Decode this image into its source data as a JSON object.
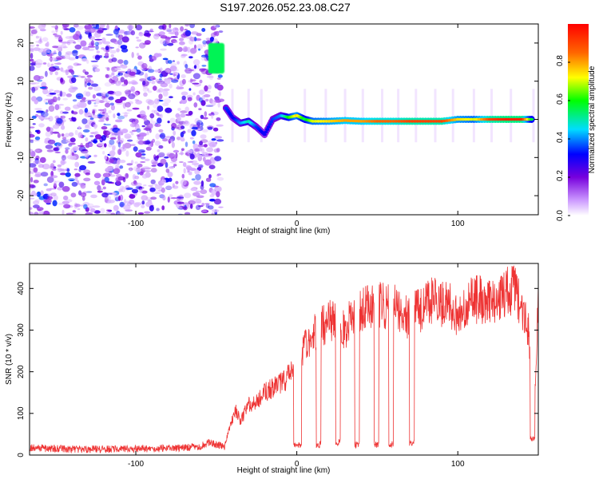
{
  "figure_title": "S197.2026.052.23.08.C27",
  "chart_data": [
    {
      "type": "heatmap",
      "name": "spectrogram",
      "xlabel": "Height of straight line (km)",
      "ylabel": "Frequency (Hz)",
      "xlim": [
        -166,
        150
      ],
      "ylim": [
        -25,
        25
      ],
      "xticks": [
        -100,
        0,
        100
      ],
      "yticks": [
        20,
        10,
        0,
        -10,
        -20
      ],
      "noise_region_x": [
        -166,
        -47
      ],
      "burst": {
        "x": [
          -55,
          -45
        ],
        "y": [
          12,
          20
        ],
        "value": 0.55
      },
      "track": {
        "x": [
          -44,
          -40,
          -35,
          -30,
          -25,
          -20,
          -15,
          -10,
          -5,
          0,
          5,
          10,
          20,
          30,
          40,
          50,
          60,
          70,
          80,
          90,
          100,
          110,
          120,
          130,
          140,
          147
        ],
        "y": [
          3,
          0.5,
          -1,
          -0.5,
          -2,
          -4,
          0,
          1,
          0.5,
          1,
          0,
          -0.5,
          -0.5,
          -0.3,
          -0.5,
          -0.5,
          -0.5,
          -0.5,
          -0.5,
          -0.5,
          0,
          0,
          0,
          0,
          0,
          0
        ],
        "amplitude": [
          0.35,
          0.3,
          0.4,
          0.5,
          0.35,
          0.3,
          0.35,
          0.4,
          0.6,
          0.75,
          0.55,
          0.7,
          0.75,
          0.8,
          0.8,
          0.85,
          0.85,
          0.9,
          0.9,
          0.9,
          0.75,
          0.7,
          0.9,
          0.95,
          0.95,
          0.5
        ]
      },
      "colorbar": {
        "label": "Normalized spectral amplitude",
        "ticks": [
          "0.0",
          "0.2",
          "0.4",
          "0.6",
          "0.8"
        ],
        "tick_values": [
          0,
          0.2,
          0.4,
          0.6,
          0.8
        ],
        "range": [
          0,
          1
        ]
      }
    },
    {
      "type": "line",
      "name": "snr",
      "xlabel": "Height of straight line (km)",
      "ylabel": "SNR (10 * v/v)",
      "xlim": [
        -166,
        150
      ],
      "ylim": [
        0,
        460
      ],
      "xticks": [
        -100,
        0,
        100
      ],
      "yticks": [
        0,
        100,
        200,
        300,
        400
      ],
      "color": "#ee3333",
      "series": [
        {
          "name": "SNR",
          "x": [
            -166,
            -150,
            -130,
            -110,
            -90,
            -70,
            -60,
            -55,
            -50,
            -45,
            -42,
            -38,
            -35,
            -30,
            -25,
            -20,
            -15,
            -10,
            -5,
            0,
            5,
            10,
            15,
            20,
            25,
            30,
            35,
            40,
            45,
            50,
            55,
            60,
            65,
            70,
            75,
            80,
            85,
            90,
            95,
            100,
            105,
            110,
            115,
            120,
            125,
            130,
            135,
            140,
            144,
            147,
            150
          ],
          "y": [
            18,
            15,
            14,
            14,
            15,
            18,
            20,
            30,
            25,
            20,
            60,
            110,
            80,
            120,
            130,
            150,
            160,
            170,
            190,
            215,
            260,
            290,
            310,
            320,
            330,
            300,
            340,
            350,
            355,
            365,
            355,
            370,
            340,
            330,
            345,
            355,
            375,
            360,
            360,
            335,
            360,
            375,
            370,
            360,
            370,
            390,
            400,
            345,
            300,
            40,
            370
          ]
        }
      ],
      "dropouts": [
        {
          "x": [
            -2,
            3
          ],
          "y": 25
        },
        {
          "x": [
            12,
            15
          ],
          "y": 25
        },
        {
          "x": [
            24,
            27
          ],
          "y": 30
        },
        {
          "x": [
            36,
            39
          ],
          "y": 25
        },
        {
          "x": [
            48,
            51
          ],
          "y": 25
        },
        {
          "x": [
            57,
            60
          ],
          "y": 25
        },
        {
          "x": [
            70,
            73
          ],
          "y": 30
        },
        {
          "x": [
            145,
            148
          ],
          "y": 40
        }
      ]
    }
  ]
}
